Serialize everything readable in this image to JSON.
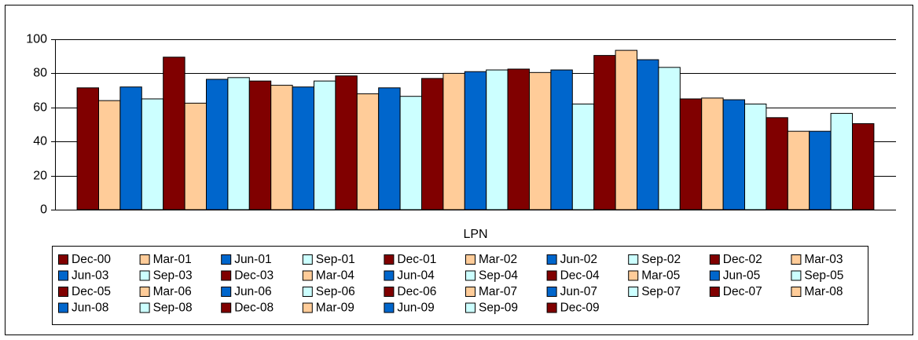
{
  "chart_data": {
    "type": "bar",
    "categories": [
      "LPN"
    ],
    "ylim": [
      0,
      100
    ],
    "yticks": [
      0,
      20,
      40,
      60,
      80,
      100
    ],
    "grid": true,
    "series": [
      {
        "name": "Dec-00",
        "color": "#800000",
        "values": [
          71.5
        ]
      },
      {
        "name": "Mar-01",
        "color": "#ffcc99",
        "values": [
          64
        ]
      },
      {
        "name": "Jun-01",
        "color": "#0066cc",
        "values": [
          72
        ]
      },
      {
        "name": "Sep-01",
        "color": "#ccffff",
        "values": [
          65
        ]
      },
      {
        "name": "Dec-01",
        "color": "#800000",
        "values": [
          89.5
        ]
      },
      {
        "name": "Mar-02",
        "color": "#ffcc99",
        "values": [
          62.5
        ]
      },
      {
        "name": "Jun-02",
        "color": "#0066cc",
        "values": [
          76.5
        ]
      },
      {
        "name": "Sep-02",
        "color": "#ccffff",
        "values": [
          77.5
        ]
      },
      {
        "name": "Dec-02",
        "color": "#800000",
        "values": [
          75.5
        ]
      },
      {
        "name": "Mar-03",
        "color": "#ffcc99",
        "values": [
          73
        ]
      },
      {
        "name": "Jun-03",
        "color": "#0066cc",
        "values": [
          72
        ]
      },
      {
        "name": "Sep-03",
        "color": "#ccffff",
        "values": [
          75.5
        ]
      },
      {
        "name": "Dec-03",
        "color": "#800000",
        "values": [
          78.5
        ]
      },
      {
        "name": "Mar-04",
        "color": "#ffcc99",
        "values": [
          68
        ]
      },
      {
        "name": "Jun-04",
        "color": "#0066cc",
        "values": [
          71.5
        ]
      },
      {
        "name": "Sep-04",
        "color": "#ccffff",
        "values": [
          66.5
        ]
      },
      {
        "name": "Dec-04",
        "color": "#800000",
        "values": [
          77
        ]
      },
      {
        "name": "Mar-05",
        "color": "#ffcc99",
        "values": [
          80
        ]
      },
      {
        "name": "Jun-05",
        "color": "#0066cc",
        "values": [
          81
        ]
      },
      {
        "name": "Sep-05",
        "color": "#ccffff",
        "values": [
          82
        ]
      },
      {
        "name": "Dec-05",
        "color": "#800000",
        "values": [
          82.5
        ]
      },
      {
        "name": "Mar-06",
        "color": "#ffcc99",
        "values": [
          80.5
        ]
      },
      {
        "name": "Jun-06",
        "color": "#0066cc",
        "values": [
          82
        ]
      },
      {
        "name": "Sep-06",
        "color": "#ccffff",
        "values": [
          62
        ]
      },
      {
        "name": "Dec-06",
        "color": "#800000",
        "values": [
          90.5
        ]
      },
      {
        "name": "Mar-07",
        "color": "#ffcc99",
        "values": [
          93.5
        ]
      },
      {
        "name": "Jun-07",
        "color": "#0066cc",
        "values": [
          88
        ]
      },
      {
        "name": "Sep-07",
        "color": "#ccffff",
        "values": [
          83.5
        ]
      },
      {
        "name": "Dec-07",
        "color": "#800000",
        "values": [
          65
        ]
      },
      {
        "name": "Mar-08",
        "color": "#ffcc99",
        "values": [
          65.5
        ]
      },
      {
        "name": "Jun-08",
        "color": "#0066cc",
        "values": [
          64.5
        ]
      },
      {
        "name": "Sep-08",
        "color": "#ccffff",
        "values": [
          62
        ]
      },
      {
        "name": "Dec-08",
        "color": "#800000",
        "values": [
          54
        ]
      },
      {
        "name": "Mar-09",
        "color": "#ffcc99",
        "values": [
          46
        ]
      },
      {
        "name": "Jun-09",
        "color": "#0066cc",
        "values": [
          46
        ]
      },
      {
        "name": "Sep-09",
        "color": "#ccffff",
        "values": [
          56.5
        ]
      },
      {
        "name": "Dec-09",
        "color": "#800000",
        "values": [
          50.5
        ]
      }
    ]
  }
}
